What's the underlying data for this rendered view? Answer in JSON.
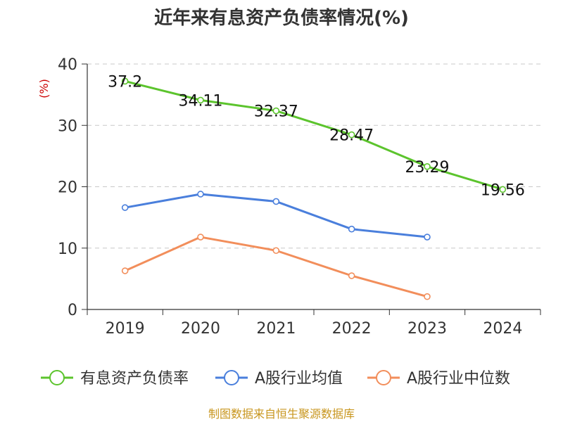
{
  "chart_data": {
    "type": "line",
    "title": "近年来有息资产负债率情况(%)",
    "ylabel": "(%)",
    "xlabel": "",
    "categories": [
      "2019",
      "2020",
      "2021",
      "2022",
      "2023",
      "2024"
    ],
    "ylim": [
      0,
      40
    ],
    "yticks": [
      0,
      10,
      20,
      30,
      40
    ],
    "grid": true,
    "legend_position": "bottom",
    "series": [
      {
        "name": "有息资产负债率",
        "color": "#5cc42d",
        "values": [
          37.2,
          34.11,
          32.37,
          28.47,
          23.29,
          19.56
        ],
        "labels": [
          "37.2",
          "34.11",
          "32.37",
          "28.47",
          "23.29",
          "19.56"
        ]
      },
      {
        "name": "A股行业均值",
        "color": "#4a7fdc",
        "values": [
          16.6,
          18.8,
          17.6,
          13.1,
          11.8,
          null
        ]
      },
      {
        "name": "A股行业中位数",
        "color": "#f28e5b",
        "values": [
          6.3,
          11.8,
          9.6,
          5.5,
          2.1,
          null
        ]
      }
    ],
    "source": "制图数据来自恒生聚源数据库"
  }
}
